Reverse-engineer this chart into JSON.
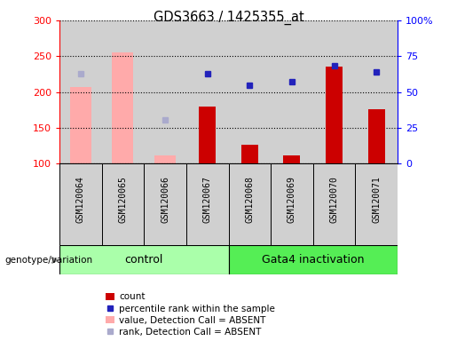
{
  "title": "GDS3663 / 1425355_at",
  "samples": [
    "GSM120064",
    "GSM120065",
    "GSM120066",
    "GSM120067",
    "GSM120068",
    "GSM120069",
    "GSM120070",
    "GSM120071"
  ],
  "count_values": [
    null,
    null,
    null,
    180,
    126,
    111,
    235,
    176
  ],
  "percentile_values": [
    null,
    null,
    null,
    226,
    209,
    215,
    237,
    228
  ],
  "absent_value_bars": [
    207,
    256,
    112,
    null,
    null,
    null,
    null,
    null
  ],
  "absent_rank_dots": [
    226,
    null,
    161,
    null,
    null,
    null,
    null,
    null
  ],
  "ylim_left": [
    100,
    300
  ],
  "ylim_right": [
    0,
    100
  ],
  "yticks_left": [
    100,
    150,
    200,
    250,
    300
  ],
  "yticks_right": [
    0,
    25,
    50,
    75,
    100
  ],
  "ytick_labels_right": [
    "0",
    "25",
    "50",
    "75",
    "100%"
  ],
  "bar_color_count": "#cc0000",
  "bar_color_absent": "#ffaaaa",
  "dot_color_percentile": "#2222bb",
  "dot_color_absent_rank": "#aaaacc",
  "group_color_control": "#aaffaa",
  "group_color_gata4": "#55ee55",
  "col_bg_color": "#d0d0d0",
  "legend_labels": [
    "count",
    "percentile rank within the sample",
    "value, Detection Call = ABSENT",
    "rank, Detection Call = ABSENT"
  ]
}
